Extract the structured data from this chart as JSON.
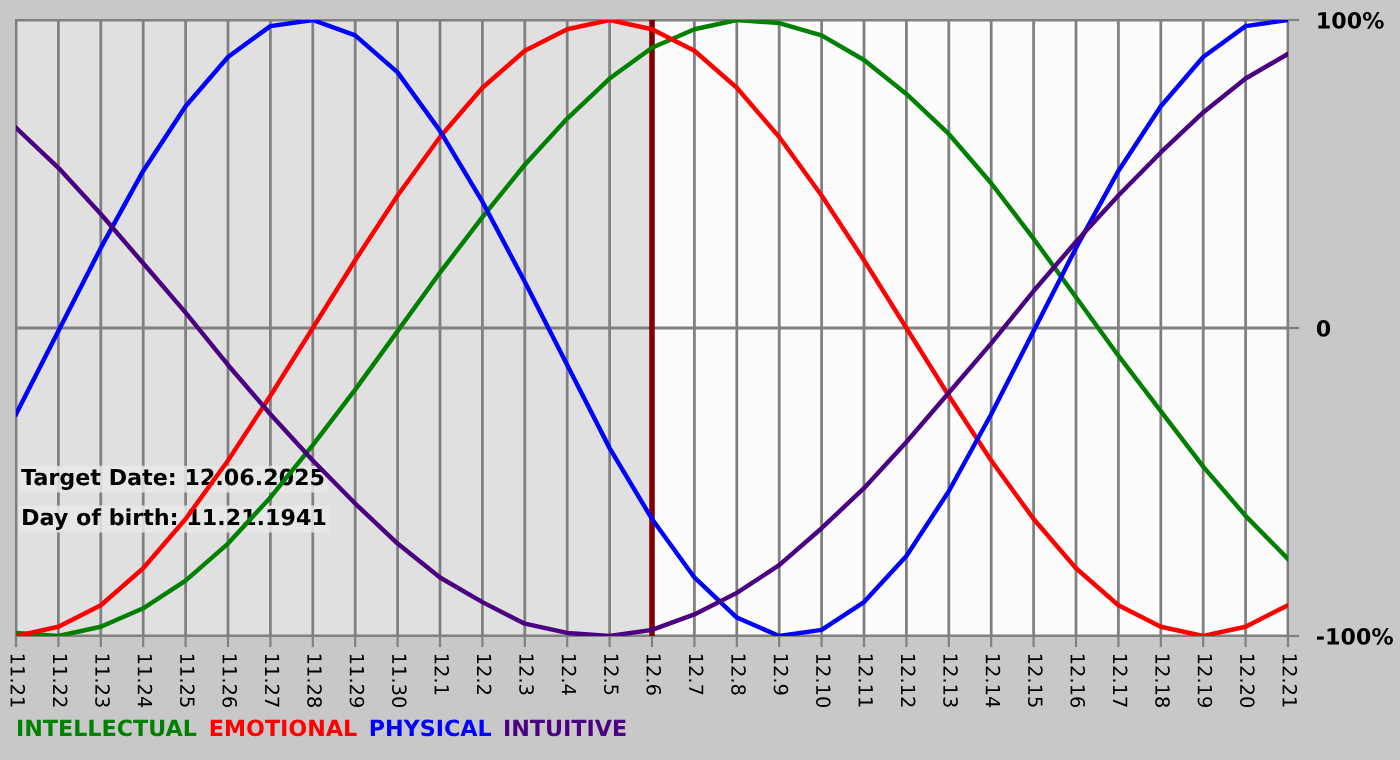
{
  "chart_data": {
    "type": "line",
    "categories": [
      "11.21",
      "11.22",
      "11.23",
      "11.24",
      "11.25",
      "11.26",
      "11.27",
      "11.28",
      "11.29",
      "11.30",
      "12.1",
      "12.2",
      "12.3",
      "12.4",
      "12.5",
      "12.6",
      "12.7",
      "12.8",
      "12.9",
      "12.10",
      "12.11",
      "12.12",
      "12.13",
      "12.14",
      "12.15",
      "12.16",
      "12.17",
      "12.18",
      "12.19",
      "12.20",
      "12.21"
    ],
    "series": [
      {
        "name": "INTELLECTUAL",
        "color": "#008000",
        "values": [
          -99,
          -100,
          -97,
          -91,
          -82,
          -70,
          -55,
          -38,
          -20,
          -1,
          18,
          36,
          53,
          68,
          81,
          91,
          97,
          100,
          99,
          95,
          87,
          76,
          63,
          47,
          29,
          10,
          -9,
          -27,
          -45,
          -61,
          -75
        ]
      },
      {
        "name": "EMOTIONAL",
        "color": "#ff0000",
        "values": [
          -100,
          -97,
          -90,
          -78,
          -62,
          -43,
          -22,
          0,
          22,
          43,
          62,
          78,
          90,
          97,
          100,
          97,
          90,
          78,
          62,
          43,
          22,
          0,
          -22,
          -43,
          -62,
          -78,
          -90,
          -97,
          -100,
          -97,
          -90
        ]
      },
      {
        "name": "PHYSICAL",
        "color": "#0000ff",
        "values": [
          -28,
          -1,
          26,
          51,
          72,
          88,
          98,
          100,
          95,
          83,
          64,
          41,
          15,
          -12,
          -39,
          -62,
          -81,
          -94,
          -100,
          -98,
          -89,
          -74,
          -53,
          -28,
          -1,
          26,
          51,
          72,
          88,
          98,
          100
        ]
      },
      {
        "name": "INTUITIVE",
        "color": "#4b0082",
        "values": [
          65,
          52,
          37,
          21,
          5,
          -12,
          -28,
          -43,
          -57,
          -70,
          -81,
          -89,
          -96,
          -99,
          -100,
          -98,
          -93,
          -86,
          -77,
          -65,
          -52,
          -37,
          -21,
          -5,
          12,
          28,
          43,
          57,
          70,
          81,
          89
        ]
      }
    ],
    "ylim": [
      -100,
      100
    ],
    "yticks": [
      {
        "value": 100,
        "label": "100%"
      },
      0,
      {
        "value": -100,
        "label": "-100%"
      }
    ],
    "grid": true,
    "legend": "bottom left",
    "line_style": "solid",
    "marker": "none",
    "ref_lines": [
      {
        "axis": "x",
        "value": "12.6",
        "color": "#800000",
        "line_style": "solid"
      }
    ],
    "bands": [
      {
        "axis": "x",
        "from": "11.21",
        "to": "12.6",
        "color": "#e0e0e0"
      }
    ],
    "annotations": [
      "Target Date: 12.06.2025",
      "Day of birth: 11.21.1941"
    ]
  }
}
